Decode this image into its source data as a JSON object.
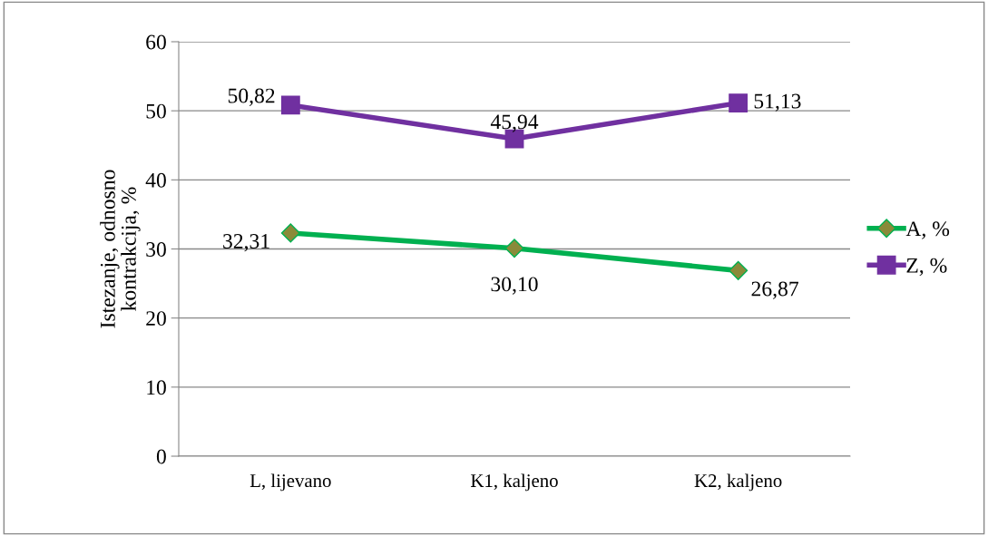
{
  "chart_data": {
    "type": "line",
    "ylabel": "Istezanje, odnosno\nkontrakcija, %",
    "categories": [
      "L, lijevano",
      "K1, kaljeno",
      "K2, kaljeno"
    ],
    "series": [
      {
        "name": "A, %",
        "color": "#00b050",
        "marker": "diamond",
        "values": [
          32.31,
          30.1,
          26.87
        ],
        "value_labels": [
          "32,31",
          "30,10",
          "26,87"
        ]
      },
      {
        "name": "Z, %",
        "color": "#7030a0",
        "marker": "square",
        "values": [
          50.82,
          45.94,
          51.13
        ],
        "value_labels": [
          "50,82",
          "45,94",
          "51,13"
        ]
      }
    ],
    "ylim": [
      0,
      60
    ],
    "yticks": [
      0,
      10,
      20,
      30,
      40,
      50,
      60
    ],
    "grid": "y",
    "legend": "right"
  }
}
